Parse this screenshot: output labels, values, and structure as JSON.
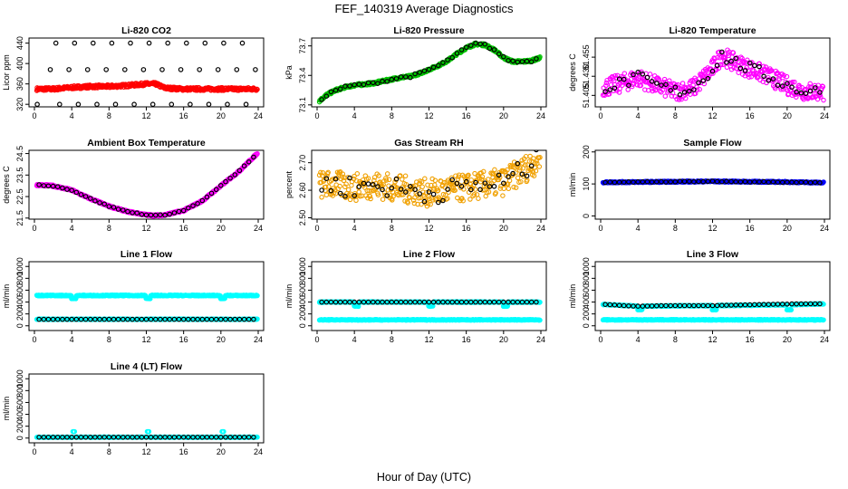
{
  "figure": {
    "title": "FEF_140319  Average Diagnostics",
    "xlabel": "Hour of Day (UTC)"
  },
  "chart_data": [
    {
      "type": "scatter",
      "title": "Li-820 CO2",
      "ylabel": "Licor ppm",
      "xlim": [
        0,
        24
      ],
      "ylim": [
        315,
        450
      ],
      "xticks": [
        0,
        4,
        8,
        12,
        16,
        20,
        24
      ],
      "yticks": [
        320,
        360,
        400,
        440
      ],
      "series": [
        {
          "role": "raw",
          "color": "#ff0000",
          "style": "band",
          "x": [
            0,
            2,
            4,
            6,
            8,
            10,
            12,
            13,
            14,
            16,
            18,
            20,
            22,
            24
          ],
          "y": [
            350,
            350,
            353,
            355,
            355,
            357,
            360,
            360,
            352,
            350,
            350,
            350,
            350,
            350
          ],
          "spread": 3
        },
        {
          "role": "average",
          "color": "#000000",
          "style": "points",
          "x": [
            0.3,
            1.7,
            2.3,
            2.7,
            3.7,
            4.3,
            4.7,
            5.7,
            6.3,
            6.7,
            7.7,
            8.3,
            8.7,
            9.7,
            10.3,
            10.7,
            11.7,
            12.3,
            12.7,
            13.7,
            14.3,
            14.7,
            15.7,
            16.3,
            16.7,
            17.7,
            18.3,
            18.7,
            19.7,
            20.3,
            20.7,
            21.7,
            22.3,
            22.7,
            23.7
          ],
          "y": [
            320,
            388,
            440,
            320,
            388,
            440,
            320,
            388,
            440,
            320,
            388,
            440,
            320,
            388,
            440,
            320,
            388,
            440,
            320,
            388,
            440,
            320,
            388,
            440,
            320,
            388,
            440,
            320,
            388,
            440,
            320,
            388,
            440,
            320,
            388
          ]
        }
      ]
    },
    {
      "type": "scatter",
      "title": "Li-820 Pressure",
      "ylabel": "kPa",
      "xlim": [
        0,
        24
      ],
      "ylim": [
        73.08,
        73.78
      ],
      "xticks": [
        0,
        4,
        8,
        12,
        16,
        20,
        24
      ],
      "yticks": [
        73.1,
        73.4,
        73.7
      ],
      "yticklabels": [
        "73.1",
        "73.4",
        "73.7"
      ],
      "series": [
        {
          "role": "raw",
          "color": "#00c000",
          "style": "band",
          "x": [
            0,
            1,
            2,
            3,
            4,
            5,
            6,
            7,
            8,
            9,
            10,
            11,
            12,
            13,
            14,
            15,
            16,
            17,
            18,
            19,
            20,
            21,
            22,
            23,
            24
          ],
          "y": [
            73.12,
            73.2,
            73.25,
            73.28,
            73.3,
            73.31,
            73.32,
            73.34,
            73.36,
            73.38,
            73.39,
            73.42,
            73.46,
            73.5,
            73.55,
            73.62,
            73.68,
            73.72,
            73.71,
            73.66,
            73.58,
            73.54,
            73.54,
            73.55,
            73.58
          ],
          "spread": 0.012
        },
        {
          "role": "average",
          "color": "#000000",
          "style": "points-on-band",
          "spread": 0.012
        }
      ]
    },
    {
      "type": "scatter",
      "title": "Li-820 Temperature",
      "ylabel": "degrees C",
      "xlim": [
        0,
        24
      ],
      "ylim": [
        51.39,
        51.48
      ],
      "xticks": [
        0,
        4,
        8,
        12,
        16,
        20,
        24
      ],
      "yticks": [
        51.405,
        51.43,
        51.455
      ],
      "yticklabels": [
        "51.405",
        "51.430",
        "51.455"
      ],
      "series": [
        {
          "role": "raw",
          "color": "#ff00ff",
          "style": "noise",
          "x": [
            0,
            2,
            4,
            6,
            8,
            10,
            12,
            13,
            14,
            16,
            18,
            20,
            22,
            24
          ],
          "y": [
            51.415,
            51.42,
            51.428,
            51.418,
            51.41,
            51.415,
            51.44,
            51.458,
            51.45,
            51.44,
            51.43,
            51.418,
            51.41,
            51.41
          ],
          "spread": 0.012
        },
        {
          "role": "average",
          "color": "#000000",
          "style": "noise-points",
          "spread": 0.008
        }
      ]
    },
    {
      "type": "scatter",
      "title": "Ambient Box Temperature",
      "ylabel": "degrees C",
      "xlim": [
        0,
        24
      ],
      "ylim": [
        21.45,
        24.65
      ],
      "xticks": [
        0,
        4,
        8,
        12,
        16,
        20,
        24
      ],
      "yticks": [
        21.5,
        22.5,
        23.5,
        24.5
      ],
      "yticklabels": [
        "21.5",
        "22.5",
        "23.5",
        "24.5"
      ],
      "series": [
        {
          "role": "raw",
          "color": "#ff00ff",
          "style": "band",
          "x": [
            0,
            2,
            4,
            6,
            8,
            10,
            12,
            13,
            14,
            16,
            18,
            20,
            22,
            24
          ],
          "y": [
            23.05,
            23.0,
            22.8,
            22.4,
            22.05,
            21.8,
            21.65,
            21.62,
            21.65,
            21.85,
            22.3,
            23.0,
            23.7,
            24.55
          ],
          "spread": 0.04
        },
        {
          "role": "average",
          "color": "#000000",
          "style": "points-on-band",
          "spread": 0.02
        }
      ]
    },
    {
      "type": "scatter",
      "title": "Gas Stream RH",
      "ylabel": "percent",
      "xlim": [
        0,
        24
      ],
      "ylim": [
        2.495,
        2.745
      ],
      "xticks": [
        0,
        4,
        8,
        12,
        16,
        20,
        24
      ],
      "yticks": [
        2.5,
        2.6,
        2.7
      ],
      "yticklabels": [
        "2.50",
        "2.60",
        "2.70"
      ],
      "series": [
        {
          "role": "raw",
          "color": "#f0a000",
          "style": "noise",
          "x": [
            0,
            2,
            4,
            6,
            8,
            10,
            12,
            14,
            16,
            18,
            20,
            22,
            24
          ],
          "y": [
            2.62,
            2.62,
            2.61,
            2.62,
            2.61,
            2.6,
            2.59,
            2.6,
            2.61,
            2.62,
            2.63,
            2.67,
            2.72
          ],
          "spread": 0.05
        },
        {
          "role": "average",
          "color": "#000000",
          "style": "noise-points",
          "spread": 0.04
        }
      ]
    },
    {
      "type": "scatter",
      "title": "Sample Flow",
      "ylabel": "ml/min",
      "xlim": [
        0,
        24
      ],
      "ylim": [
        -10,
        205
      ],
      "xticks": [
        0,
        4,
        8,
        12,
        16,
        20,
        24
      ],
      "yticks": [
        0,
        100,
        200
      ],
      "series": [
        {
          "role": "raw",
          "color": "#0000ff",
          "style": "band",
          "x": [
            0,
            4,
            8,
            12,
            16,
            20,
            24
          ],
          "y": [
            105,
            106,
            107,
            108,
            107,
            106,
            104
          ],
          "spread": 2
        },
        {
          "role": "average",
          "color": "#000000",
          "style": "points-on-band",
          "spread": 1
        }
      ]
    },
    {
      "type": "scatter",
      "title": "Line 1 Flow",
      "ylabel": "ml/min",
      "xlim": [
        0,
        24
      ],
      "ylim": [
        -80,
        1080
      ],
      "xticks": [
        0,
        4,
        8,
        12,
        16,
        20,
        24
      ],
      "yticks": [
        0,
        200,
        400,
        600,
        800,
        1000
      ],
      "series": [
        {
          "role": "raw",
          "color": "#00ffff",
          "style": "band",
          "x": [
            0,
            24
          ],
          "y": [
            510,
            510
          ],
          "spread": 8,
          "dips": [
            4.2,
            12.2,
            20.2
          ],
          "dipValue": 460
        },
        {
          "role": "raw",
          "color": "#00ffff",
          "style": "band",
          "x": [
            0,
            24
          ],
          "y": [
            110,
            110
          ],
          "spread": 6
        },
        {
          "role": "average",
          "color": "#000000",
          "style": "points",
          "x": [
            0.5,
            1,
            1.5,
            2,
            2.5,
            3,
            3.5,
            4,
            4.5,
            5,
            5.5,
            6,
            6.5,
            7,
            7.5,
            8,
            8.5,
            9,
            9.5,
            10,
            10.5,
            11,
            11.5,
            12,
            12.5,
            13,
            13.5,
            14,
            14.5,
            15,
            15.5,
            16,
            16.5,
            17,
            17.5,
            18,
            18.5,
            19,
            19.5,
            20,
            20.5,
            21,
            21.5,
            22,
            22.5,
            23,
            23.5
          ],
          "y": [
            110,
            110,
            110,
            110,
            110,
            110,
            110,
            110,
            110,
            110,
            110,
            110,
            110,
            110,
            110,
            110,
            110,
            110,
            110,
            110,
            110,
            110,
            110,
            110,
            110,
            110,
            110,
            110,
            110,
            110,
            110,
            110,
            110,
            110,
            110,
            110,
            110,
            110,
            110,
            110,
            110,
            110,
            110,
            110,
            110,
            110,
            110
          ]
        }
      ]
    },
    {
      "type": "scatter",
      "title": "Line 2 Flow",
      "ylabel": "ml/min",
      "xlim": [
        0,
        24
      ],
      "ylim": [
        -80,
        1080
      ],
      "xticks": [
        0,
        4,
        8,
        12,
        16,
        20,
        24
      ],
      "yticks": [
        0,
        200,
        400,
        600,
        800,
        1000
      ],
      "series": [
        {
          "role": "raw",
          "color": "#00ffff",
          "style": "band",
          "x": [
            0,
            24
          ],
          "y": [
            400,
            400
          ],
          "spread": 8,
          "dips": [
            4.2,
            12.2,
            20.2
          ],
          "dipValue": 330
        },
        {
          "role": "raw",
          "color": "#00ffff",
          "style": "band",
          "x": [
            0,
            24
          ],
          "y": [
            100,
            100
          ],
          "spread": 6
        },
        {
          "role": "average",
          "color": "#000000",
          "style": "points",
          "x": [
            0.5,
            1,
            1.5,
            2,
            2.5,
            3,
            3.5,
            4,
            4.5,
            5,
            5.5,
            6,
            6.5,
            7,
            7.5,
            8,
            8.5,
            9,
            9.5,
            10,
            10.5,
            11,
            11.5,
            12,
            12.5,
            13,
            13.5,
            14,
            14.5,
            15,
            15.5,
            16,
            16.5,
            17,
            17.5,
            18,
            18.5,
            19,
            19.5,
            20,
            20.5,
            21,
            21.5,
            22,
            22.5,
            23,
            23.5
          ],
          "y": [
            400,
            400,
            400,
            400,
            400,
            400,
            400,
            400,
            400,
            400,
            400,
            400,
            400,
            400,
            400,
            400,
            400,
            400,
            400,
            400,
            400,
            400,
            400,
            400,
            400,
            400,
            400,
            400,
            400,
            400,
            400,
            400,
            400,
            400,
            400,
            400,
            400,
            400,
            400,
            400,
            400,
            400,
            400,
            400,
            400,
            400,
            400
          ]
        }
      ]
    },
    {
      "type": "scatter",
      "title": "Line 3 Flow",
      "ylabel": "ml/min",
      "xlim": [
        0,
        24
      ],
      "ylim": [
        -80,
        1080
      ],
      "xticks": [
        0,
        4,
        8,
        12,
        16,
        20,
        24
      ],
      "yticks": [
        0,
        200,
        400,
        600,
        800,
        1000
      ],
      "series": [
        {
          "role": "raw",
          "color": "#00ffff",
          "style": "band",
          "x": [
            0,
            4,
            12,
            20,
            24
          ],
          "y": [
            360,
            330,
            340,
            355,
            370
          ],
          "spread": 8,
          "dips": [
            4.2,
            12.2,
            20.2
          ],
          "dipValue": 270
        },
        {
          "role": "raw",
          "color": "#00ffff",
          "style": "band",
          "x": [
            0,
            24
          ],
          "y": [
            100,
            100
          ],
          "spread": 6
        },
        {
          "role": "average",
          "color": "#000000",
          "style": "points",
          "x": [
            0.5,
            1,
            1.5,
            2,
            2.5,
            3,
            3.5,
            4,
            4.5,
            5,
            5.5,
            6,
            6.5,
            7,
            7.5,
            8,
            8.5,
            9,
            9.5,
            10,
            10.5,
            11,
            11.5,
            12,
            12.5,
            13,
            13.5,
            14,
            14.5,
            15,
            15.5,
            16,
            16.5,
            17,
            17.5,
            18,
            18.5,
            19,
            19.5,
            20,
            20.5,
            21,
            21.5,
            22,
            22.5,
            23,
            23.5
          ],
          "y": [
            360,
            355,
            350,
            345,
            340,
            335,
            332,
            330,
            330,
            332,
            334,
            336,
            338,
            340,
            340,
            340,
            340,
            340,
            340,
            340,
            340,
            340,
            340,
            340,
            342,
            344,
            346,
            348,
            350,
            350,
            352,
            354,
            356,
            358,
            360,
            360,
            362,
            364,
            366,
            366,
            368,
            368,
            368,
            370,
            370,
            370,
            370
          ]
        }
      ]
    },
    {
      "type": "scatter",
      "title": "Line 4 (LT) Flow",
      "ylabel": "ml/min",
      "xlim": [
        0,
        24
      ],
      "ylim": [
        -80,
        1080
      ],
      "xticks": [
        0,
        4,
        8,
        12,
        16,
        20,
        24
      ],
      "yticks": [
        0,
        200,
        400,
        600,
        800,
        1000
      ],
      "series": [
        {
          "role": "raw",
          "color": "#00ffff",
          "style": "band",
          "x": [
            0,
            24
          ],
          "y": [
            15,
            15
          ],
          "spread": 5,
          "spikes": [
            4.2,
            12.2,
            20.2
          ],
          "spikeValue": 110
        },
        {
          "role": "average",
          "color": "#000000",
          "style": "points",
          "x": [
            0.5,
            1,
            1.5,
            2,
            2.5,
            3,
            3.5,
            4,
            4.5,
            5,
            5.5,
            6,
            6.5,
            7,
            7.5,
            8,
            8.5,
            9,
            9.5,
            10,
            10.5,
            11,
            11.5,
            12,
            12.5,
            13,
            13.5,
            14,
            14.5,
            15,
            15.5,
            16,
            16.5,
            17,
            17.5,
            18,
            18.5,
            19,
            19.5,
            20,
            20.5,
            21,
            21.5,
            22,
            22.5,
            23,
            23.5
          ],
          "y": [
            15,
            15,
            15,
            15,
            15,
            15,
            15,
            15,
            15,
            15,
            15,
            15,
            15,
            15,
            15,
            15,
            15,
            15,
            15,
            15,
            15,
            15,
            15,
            15,
            15,
            15,
            15,
            15,
            15,
            15,
            15,
            15,
            15,
            15,
            15,
            15,
            15,
            15,
            15,
            15,
            15,
            15,
            15,
            15,
            15,
            15,
            15
          ]
        }
      ]
    }
  ]
}
